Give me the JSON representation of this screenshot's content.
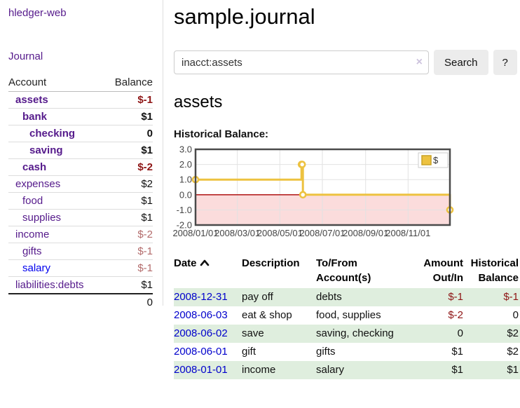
{
  "colors": {
    "link_purple": "#551A8B",
    "link_blue": "#0000EE",
    "date_link_blue": "#0000cc",
    "negative_dark": "#8e1515",
    "negative_muted": "#b36b6b",
    "row_stripe_green": "#dfeede",
    "chart_line_gold": "#EDC240",
    "chart_negative_fill": "#fbdcdc",
    "chart_zero_line": "#aa0000",
    "chart_grid": "#e2e2e2",
    "chart_border": "#4a4a4a"
  },
  "sidebar": {
    "app_title": "hledger-web",
    "journal_link": "Journal",
    "accounts_header": {
      "account": "Account",
      "balance": "Balance"
    },
    "accounts": [
      {
        "name": "assets",
        "depth": 0,
        "bold": true,
        "balance": "$-1"
      },
      {
        "name": "bank",
        "depth": 1,
        "bold": true,
        "balance": "$1"
      },
      {
        "name": "checking",
        "depth": 2,
        "bold": true,
        "balance": "0"
      },
      {
        "name": "saving",
        "depth": 2,
        "bold": true,
        "balance": "$1"
      },
      {
        "name": "cash",
        "depth": 1,
        "bold": true,
        "balance": "$-2"
      },
      {
        "name": "expenses",
        "depth": 0,
        "bold": false,
        "balance": "$2"
      },
      {
        "name": "food",
        "depth": 1,
        "bold": false,
        "balance": "$1"
      },
      {
        "name": "supplies",
        "depth": 1,
        "bold": false,
        "balance": "$1"
      },
      {
        "name": "income",
        "depth": 0,
        "bold": false,
        "balance": "$-2"
      },
      {
        "name": "gifts",
        "depth": 1,
        "bold": false,
        "balance": "$-1"
      },
      {
        "name": "salary",
        "depth": 1,
        "bold": false,
        "balance": "$-1",
        "unvisited": true
      },
      {
        "name": "liabilities:debts",
        "depth": 0,
        "bold": false,
        "balance": "$1"
      }
    ],
    "total": "0"
  },
  "main": {
    "title": "sample.journal",
    "account_heading": "assets",
    "chart_label": "Historical Balance:"
  },
  "search": {
    "value": "inacct:assets",
    "clear": "×",
    "button": "Search",
    "help": "?"
  },
  "chart_data": {
    "type": "line",
    "step": true,
    "title": "Historical Balance",
    "legend": [
      {
        "label": "$",
        "color": "#EDC240"
      }
    ],
    "legend_position": "top-right",
    "grid": true,
    "xlim": [
      "2008-01-01",
      "2008-12-31"
    ],
    "ylim": [
      -2.0,
      3.0
    ],
    "y_ticks": [
      3.0,
      2.0,
      1.0,
      0.0,
      -1.0,
      -2.0
    ],
    "grid_y": [
      2,
      1,
      -1
    ],
    "x_tick_dates": [
      "2008-01-01",
      "2008-03-01",
      "2008-05-01",
      "2008-07-01",
      "2008-09-01",
      "2008-11-01"
    ],
    "x_tick_labels": [
      "2008/01/01",
      "2008/03/01",
      "2008/05/01",
      "2008/07/01",
      "2008/09/01",
      "2008/11/01"
    ],
    "negative_region_shaded": true,
    "series": [
      {
        "name": "$",
        "points": [
          [
            "2008-01-01",
            1
          ],
          [
            "2008-06-01",
            2
          ],
          [
            "2008-06-02",
            2
          ],
          [
            "2008-06-03",
            0
          ],
          [
            "2008-12-31",
            -1
          ]
        ]
      }
    ]
  },
  "register": {
    "headers": {
      "date": "Date",
      "description": "Description",
      "tofrom": "To/From Account(s)",
      "amount": "Amount Out/In",
      "balance": "Historical Balance"
    },
    "rows": [
      {
        "date": "2008-12-31",
        "description": "pay off",
        "accounts": "debts",
        "amount": "$-1",
        "balance": "$-1"
      },
      {
        "date": "2008-06-03",
        "description": "eat & shop",
        "accounts": "food, supplies",
        "amount": "$-2",
        "balance": "0"
      },
      {
        "date": "2008-06-02",
        "description": "save",
        "accounts": "saving, checking",
        "amount": "0",
        "balance": "$2"
      },
      {
        "date": "2008-06-01",
        "description": "gift",
        "accounts": "gifts",
        "amount": "$1",
        "balance": "$2"
      },
      {
        "date": "2008-01-01",
        "description": "income",
        "accounts": "salary",
        "amount": "$1",
        "balance": "$1"
      }
    ]
  }
}
